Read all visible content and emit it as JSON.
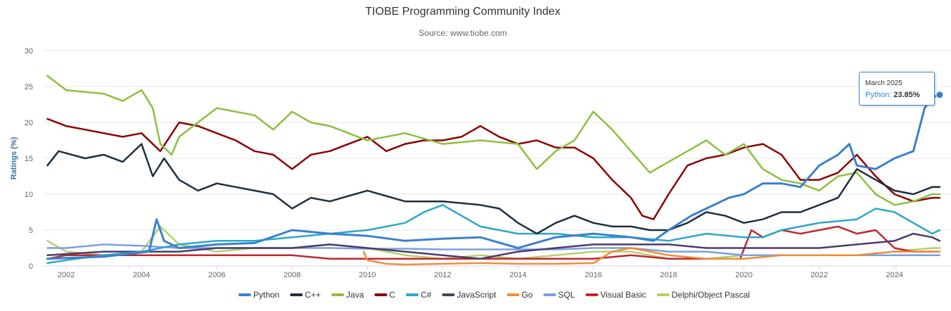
{
  "chart_data": {
    "type": "line",
    "title": "TIOBE Programming Community Index",
    "subtitle": "Source: www.tiobe.com",
    "xlabel": "",
    "ylabel": "Ratings (%)",
    "xlim": [
      2001.4,
      2025.5
    ],
    "ylim": [
      0,
      30
    ],
    "xticks": [
      2002,
      2004,
      2006,
      2008,
      2010,
      2012,
      2014,
      2016,
      2018,
      2020,
      2022,
      2024
    ],
    "yticks": [
      0,
      5,
      10,
      15,
      20,
      25,
      30
    ],
    "grid": true,
    "legend": "bottom",
    "series": [
      {
        "name": "Python",
        "color": "#3a80cf",
        "x": [
          2001.5,
          2003,
          2004.2,
          2004.4,
          2004.6,
          2005,
          2006,
          2007,
          2008,
          2009,
          2010,
          2011,
          2012,
          2013,
          2014,
          2015,
          2016,
          2017,
          2017.6,
          2018,
          2018.6,
          2019,
          2019.6,
          2020,
          2020.5,
          2021,
          2021.5,
          2022,
          2022.5,
          2022.8,
          2023,
          2023.5,
          2024,
          2024.5,
          2024.8,
          2025.0,
          2025.2
        ],
        "values": [
          1.0,
          1.3,
          2.0,
          6.5,
          3.5,
          2.5,
          3.0,
          3.2,
          5.0,
          4.5,
          4.2,
          3.5,
          3.8,
          4.0,
          2.5,
          4.0,
          4.5,
          4.0,
          3.5,
          5.0,
          7.0,
          8.0,
          9.5,
          10.0,
          11.5,
          11.5,
          11.0,
          14.0,
          15.5,
          17.0,
          14.0,
          13.5,
          15.0,
          16.0,
          22.0,
          23.5,
          23.85
        ]
      },
      {
        "name": "C++",
        "color": "#1c2e3f",
        "x": [
          2001.5,
          2001.8,
          2002.5,
          2003,
          2003.5,
          2004,
          2004.3,
          2004.6,
          2005,
          2005.5,
          2006,
          2007,
          2007.5,
          2008,
          2008.5,
          2009,
          2010,
          2011,
          2012,
          2013,
          2013.5,
          2014,
          2014.5,
          2015,
          2015.5,
          2016,
          2016.5,
          2017,
          2017.5,
          2018,
          2018.5,
          2019,
          2019.5,
          2020,
          2020.5,
          2021,
          2021.5,
          2022,
          2022.5,
          2023,
          2023.5,
          2024,
          2024.5,
          2025,
          2025.2
        ],
        "values": [
          14.0,
          16.0,
          15.0,
          15.5,
          14.5,
          17.0,
          12.5,
          15.0,
          12.0,
          10.5,
          11.5,
          10.5,
          10.0,
          8.0,
          9.5,
          9.0,
          10.5,
          9.0,
          9.0,
          8.5,
          8.0,
          6.0,
          4.5,
          6.0,
          7.0,
          6.0,
          5.5,
          5.5,
          5.0,
          5.0,
          6.0,
          7.5,
          7.0,
          6.0,
          6.5,
          7.5,
          7.5,
          8.5,
          9.5,
          13.5,
          12.0,
          10.5,
          10.0,
          11.0,
          11.0
        ]
      },
      {
        "name": "Java",
        "color": "#8cbf3f",
        "x": [
          2001.5,
          2002,
          2003,
          2003.5,
          2004,
          2004.3,
          2004.5,
          2004.8,
          2005,
          2005.5,
          2006,
          2007,
          2007.5,
          2008,
          2008.5,
          2009,
          2009.5,
          2010,
          2011,
          2012,
          2013,
          2014,
          2014.5,
          2015,
          2015.5,
          2016,
          2016.5,
          2017,
          2017.5,
          2018,
          2018.5,
          2019,
          2019.5,
          2020,
          2020.5,
          2021,
          2021.5,
          2022,
          2022.5,
          2023,
          2023.5,
          2024,
          2024.5,
          2025,
          2025.2
        ],
        "values": [
          26.5,
          24.5,
          24.0,
          23.0,
          24.5,
          22.0,
          17.0,
          15.5,
          18.0,
          20.0,
          22.0,
          21.0,
          19.0,
          21.5,
          20.0,
          19.5,
          18.5,
          17.5,
          18.5,
          17.0,
          17.5,
          17.0,
          13.5,
          16.0,
          17.5,
          21.5,
          19.0,
          16.0,
          13.0,
          14.5,
          16.0,
          17.5,
          15.5,
          17.0,
          13.5,
          12.0,
          11.5,
          10.5,
          12.5,
          13.0,
          10.0,
          8.5,
          9.0,
          10.0,
          10.0
        ]
      },
      {
        "name": "C",
        "color": "#8b0000",
        "x": [
          2001.5,
          2002,
          2002.5,
          2003,
          2003.5,
          2004,
          2004.5,
          2005,
          2005.5,
          2006,
          2006.5,
          2007,
          2007.5,
          2008,
          2008.5,
          2009,
          2009.5,
          2010,
          2010.5,
          2011,
          2011.5,
          2012,
          2012.5,
          2013,
          2013.5,
          2014,
          2014.5,
          2015,
          2015.5,
          2016,
          2016.5,
          2017,
          2017.3,
          2017.6,
          2018,
          2018.5,
          2019,
          2019.5,
          2020,
          2020.5,
          2021,
          2021.5,
          2022,
          2022.5,
          2023,
          2023.5,
          2024,
          2024.5,
          2025,
          2025.2
        ],
        "values": [
          20.5,
          19.5,
          19.0,
          18.5,
          18.0,
          18.5,
          16.0,
          20.0,
          19.5,
          18.5,
          17.5,
          16.0,
          15.5,
          13.5,
          15.5,
          16.0,
          17.0,
          18.0,
          16.0,
          17.0,
          17.5,
          17.5,
          18.0,
          19.5,
          18.0,
          17.0,
          17.5,
          16.5,
          16.5,
          15.0,
          12.0,
          9.5,
          7.0,
          6.5,
          10.0,
          14.0,
          15.0,
          15.5,
          16.5,
          17.0,
          15.5,
          12.0,
          12.0,
          13.0,
          15.5,
          12.5,
          10.0,
          9.0,
          9.5,
          9.5
        ]
      },
      {
        "name": "C#",
        "color": "#29a8c8",
        "x": [
          2001.5,
          2002,
          2003,
          2004,
          2005,
          2006,
          2007,
          2008,
          2009,
          2010,
          2011,
          2011.5,
          2012,
          2012.5,
          2013,
          2013.5,
          2014,
          2014.5,
          2015,
          2016,
          2017,
          2018,
          2019,
          2020,
          2020.5,
          2021,
          2022,
          2023,
          2023.5,
          2024,
          2024.5,
          2025,
          2025.2
        ],
        "values": [
          0.4,
          0.8,
          1.5,
          2.0,
          3.0,
          3.5,
          3.5,
          4.0,
          4.5,
          5.0,
          6.0,
          7.5,
          8.5,
          7.0,
          5.5,
          5.0,
          4.5,
          4.5,
          4.5,
          4.0,
          4.0,
          3.5,
          4.5,
          4.0,
          4.0,
          5.0,
          6.0,
          6.5,
          8.0,
          7.5,
          6.0,
          4.5,
          5.0
        ]
      },
      {
        "name": "JavaScript",
        "color": "#4b3b6b",
        "x": [
          2001.5,
          2003,
          2004,
          2005,
          2006,
          2007,
          2008,
          2009,
          2010,
          2011,
          2012,
          2013,
          2014,
          2015,
          2016,
          2017,
          2018,
          2019,
          2020,
          2021,
          2022,
          2023,
          2024,
          2024.5,
          2025,
          2025.2
        ],
        "values": [
          1.5,
          2.0,
          2.0,
          2.0,
          2.5,
          2.5,
          2.5,
          3.0,
          2.5,
          2.0,
          1.5,
          1.0,
          2.0,
          2.5,
          3.0,
          3.0,
          3.0,
          2.5,
          2.5,
          2.5,
          2.5,
          3.0,
          3.5,
          4.5,
          4.0,
          3.5
        ]
      },
      {
        "name": "Go",
        "color": "#ef8c3a",
        "x": [
          2009.9,
          2010,
          2010.5,
          2011,
          2012,
          2013,
          2014,
          2015,
          2016,
          2016.5,
          2017,
          2018,
          2019,
          2020,
          2021,
          2022,
          2023,
          2024,
          2025,
          2025.2
        ],
        "values": [
          2.0,
          0.8,
          0.3,
          0.2,
          0.3,
          0.4,
          0.3,
          0.3,
          0.4,
          2.0,
          2.5,
          1.5,
          1.0,
          1.0,
          1.5,
          1.5,
          1.5,
          2.0,
          2.0,
          2.0
        ]
      },
      {
        "name": "SQL",
        "color": "#7b9fe0",
        "x": [
          2001.5,
          2002,
          2003,
          2004,
          2005,
          2006,
          2007,
          2008,
          2009,
          2010,
          2011,
          2012,
          2013,
          2014,
          2015,
          2016,
          2017,
          2018,
          2019,
          2020,
          2021,
          2022,
          2023,
          2024,
          2025,
          2025.2
        ],
        "values": [
          2.5,
          2.5,
          3.0,
          2.8,
          2.5,
          2.5,
          2.5,
          2.5,
          2.5,
          2.4,
          2.4,
          2.3,
          2.3,
          2.3,
          2.3,
          2.5,
          2.5,
          2.0,
          2.0,
          1.5,
          1.5,
          1.5,
          1.5,
          1.5,
          1.5,
          1.5
        ]
      },
      {
        "name": "Visual Basic",
        "color": "#c0282d",
        "x": [
          2001.5,
          2002,
          2003,
          2004,
          2005,
          2006,
          2007,
          2008,
          2009,
          2010,
          2011,
          2012,
          2013,
          2014,
          2015,
          2016,
          2017,
          2018,
          2019,
          2019.9,
          2020.2,
          2020.5,
          2021,
          2021.5,
          2022,
          2022.5,
          2023,
          2023.5,
          2024,
          2024.5,
          2025,
          2025.2
        ],
        "values": [
          1.0,
          1.5,
          1.5,
          1.5,
          1.5,
          1.5,
          1.5,
          1.5,
          1.0,
          1.0,
          1.0,
          1.0,
          1.0,
          1.0,
          1.0,
          1.0,
          1.5,
          1.0,
          1.0,
          1.0,
          5.0,
          4.0,
          5.0,
          4.5,
          5.0,
          5.5,
          4.5,
          5.0,
          2.5,
          2.0,
          2.0,
          2.0
        ]
      },
      {
        "name": "Delphi/Object Pascal",
        "color": "#b5d06e",
        "x": [
          2001.5,
          2002,
          2003,
          2004,
          2004.5,
          2005,
          2006,
          2007,
          2008,
          2009,
          2010,
          2011,
          2012,
          2013,
          2014,
          2015,
          2016,
          2017,
          2018,
          2019,
          2020,
          2021,
          2022,
          2023,
          2024,
          2025,
          2025.2
        ],
        "values": [
          3.5,
          2.0,
          1.5,
          2.0,
          5.5,
          3.0,
          2.0,
          2.5,
          2.5,
          3.0,
          2.5,
          1.5,
          1.0,
          1.5,
          1.0,
          1.5,
          2.0,
          2.0,
          1.0,
          1.0,
          1.5,
          1.5,
          1.5,
          1.5,
          2.0,
          2.5,
          2.5
        ]
      }
    ]
  },
  "tooltip": {
    "date": "March 2025",
    "series": "Python",
    "value": "23.85%"
  }
}
